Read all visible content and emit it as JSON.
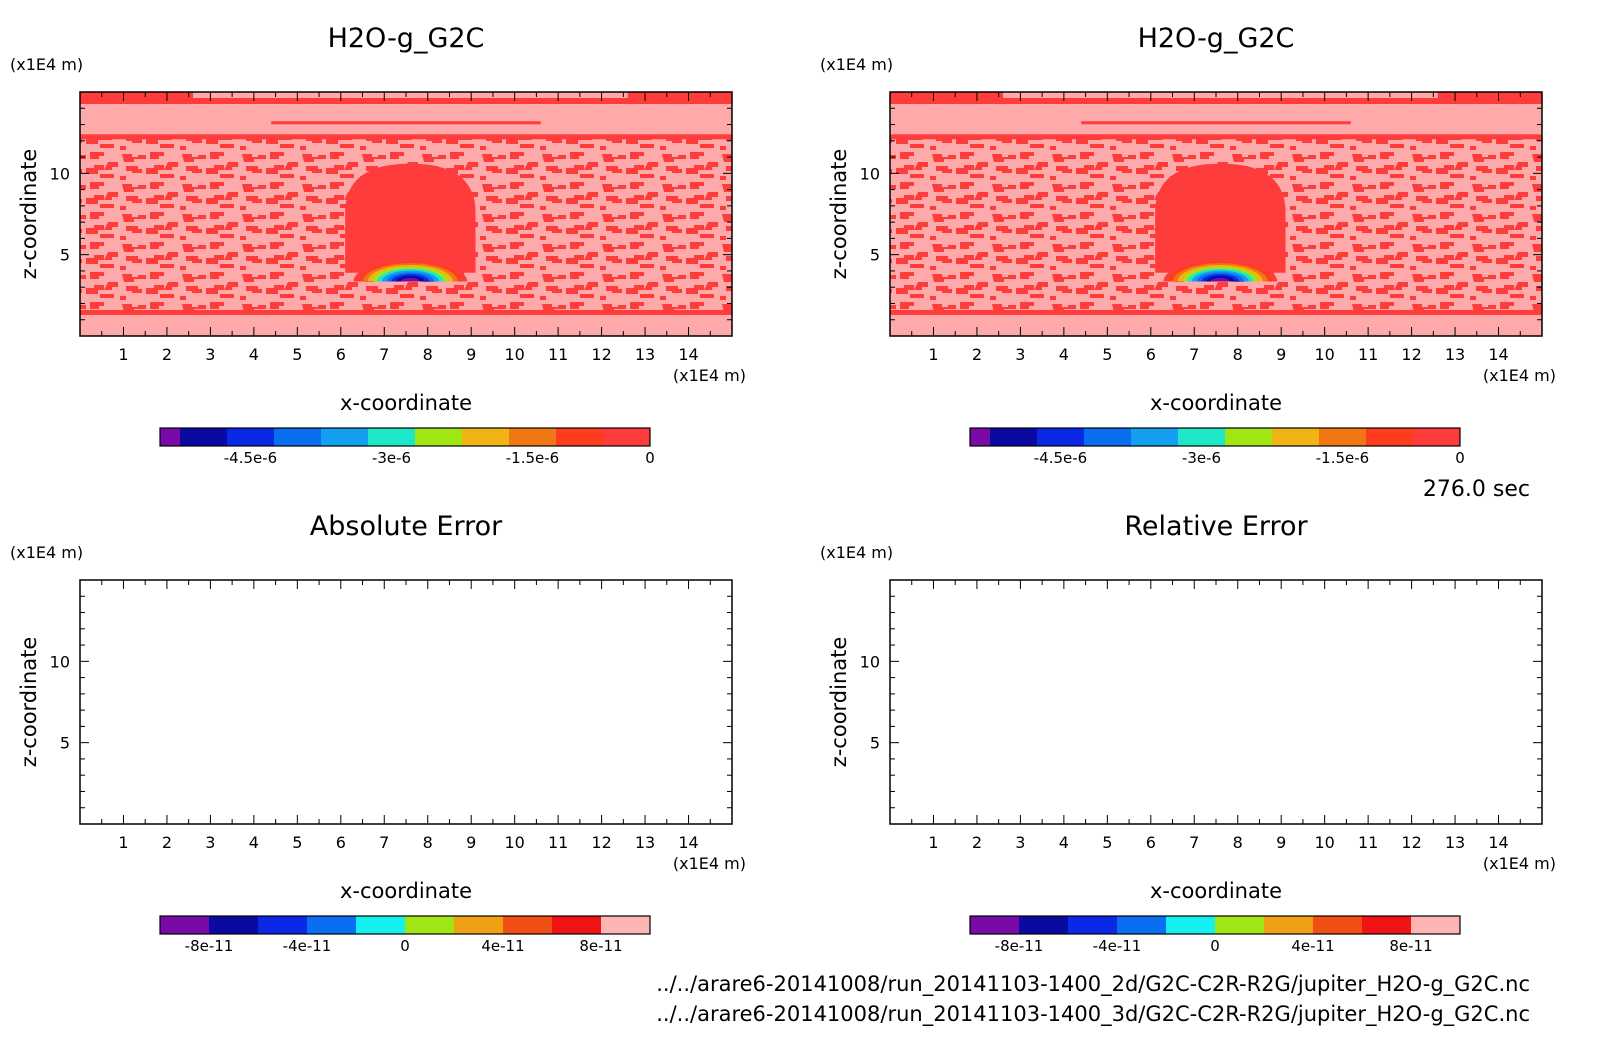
{
  "chart_data": [
    {
      "type": "heatmap",
      "title": "H2O-g_G2C",
      "xlabel": "x-coordinate",
      "ylabel": "z-coordinate",
      "x_unit": "(x1E4 m)",
      "y_unit": "(x1E4 m)",
      "xlim": [
        0,
        15
      ],
      "ylim": [
        0,
        15
      ],
      "x_ticks": [
        "1",
        "2",
        "3",
        "4",
        "5",
        "6",
        "7",
        "8",
        "9",
        "10",
        "11",
        "12",
        "13",
        "14"
      ],
      "y_ticks": [
        "5",
        "10"
      ],
      "colorbar": {
        "colors": [
          "#7a0aa8",
          "#0a0aa0",
          "#0a28e6",
          "#0a6ef0",
          "#14a0f0",
          "#1ee6c8",
          "#a0e614",
          "#f0b414",
          "#f07814",
          "#ff3c1e",
          "#ff3c3c"
        ],
        "tick_labels": [
          "-4.5e-6",
          "-3e-6",
          "-1.5e-6",
          "0"
        ]
      },
      "field": "anomaly bubble centered near x=7.6, z=6, minimum about -5e-6 at bubble base; background near 0"
    },
    {
      "type": "heatmap",
      "title": "H2O-g_G2C",
      "xlabel": "x-coordinate",
      "ylabel": "z-coordinate",
      "x_unit": "(x1E4 m)",
      "y_unit": "(x1E4 m)",
      "xlim": [
        0,
        15
      ],
      "ylim": [
        0,
        15
      ],
      "x_ticks": [
        "1",
        "2",
        "3",
        "4",
        "5",
        "6",
        "7",
        "8",
        "9",
        "10",
        "11",
        "12",
        "13",
        "14"
      ],
      "y_ticks": [
        "5",
        "10"
      ],
      "colorbar": {
        "colors": [
          "#7a0aa8",
          "#0a0aa0",
          "#0a28e6",
          "#0a6ef0",
          "#14a0f0",
          "#1ee6c8",
          "#a0e614",
          "#f0b414",
          "#f07814",
          "#ff3c1e",
          "#ff3c3c"
        ],
        "tick_labels": [
          "-4.5e-6",
          "-3e-6",
          "-1.5e-6",
          "0"
        ]
      },
      "field": "identical to first panel"
    },
    {
      "type": "heatmap",
      "title": "Absolute Error",
      "xlabel": "x-coordinate",
      "ylabel": "z-coordinate",
      "x_unit": "(x1E4 m)",
      "y_unit": "(x1E4 m)",
      "xlim": [
        0,
        15
      ],
      "ylim": [
        0,
        15
      ],
      "x_ticks": [
        "1",
        "2",
        "3",
        "4",
        "5",
        "6",
        "7",
        "8",
        "9",
        "10",
        "11",
        "12",
        "13",
        "14"
      ],
      "y_ticks": [
        "5",
        "10"
      ],
      "colorbar": {
        "colors": [
          "#7a0aa8",
          "#0a0aa0",
          "#0a28e6",
          "#0a6ef0",
          "#14f0f0",
          "#a0e614",
          "#f0a014",
          "#f05014",
          "#f01414",
          "#ffb4b4"
        ],
        "tick_labels": [
          "-8e-11",
          "-4e-11",
          "0",
          "4e-11",
          "8e-11"
        ]
      },
      "field": "empty"
    },
    {
      "type": "heatmap",
      "title": "Relative Error",
      "xlabel": "x-coordinate",
      "ylabel": "z-coordinate",
      "x_unit": "(x1E4 m)",
      "y_unit": "(x1E4 m)",
      "xlim": [
        0,
        15
      ],
      "ylim": [
        0,
        15
      ],
      "x_ticks": [
        "1",
        "2",
        "3",
        "4",
        "5",
        "6",
        "7",
        "8",
        "9",
        "10",
        "11",
        "12",
        "13",
        "14"
      ],
      "y_ticks": [
        "5",
        "10"
      ],
      "colorbar": {
        "colors": [
          "#7a0aa8",
          "#0a0aa0",
          "#0a28e6",
          "#0a6ef0",
          "#14f0f0",
          "#a0e614",
          "#f0a014",
          "#f05014",
          "#f01414",
          "#ffb4b4"
        ],
        "tick_labels": [
          "-8e-11",
          "-4e-11",
          "0",
          "4e-11",
          "8e-11"
        ]
      },
      "field": "empty"
    }
  ],
  "time_label": "276.0 sec",
  "file_paths": [
    "../../arare6-20141008/run_20141103-1400_2d/G2C-C2R-R2G/jupiter_H2O-g_G2C.nc",
    "../../arare6-20141008/run_20141103-1400_3d/G2C-C2R-R2G/jupiter_H2O-g_G2C.nc"
  ],
  "colors": {
    "background_high": "#ffaaaa",
    "background_mid": "#ff3c3c"
  }
}
